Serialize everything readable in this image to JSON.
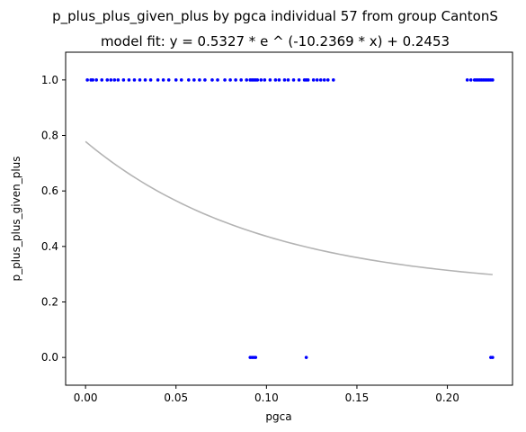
{
  "chart_data": {
    "type": "scatter",
    "title": "p_plus_plus_given_plus by pgca individual 57 from group CantonS",
    "subtitle": "model fit: y = 0.5327 * e ^ (-10.2369 * x) + 0.2453",
    "xlabel": "pgca",
    "ylabel": "p_plus_plus_given_plus",
    "xlim": [
      -0.011,
      0.236
    ],
    "ylim": [
      -0.1,
      1.1
    ],
    "xticks": [
      "0.00",
      "0.05",
      "0.10",
      "0.15",
      "0.20"
    ],
    "yticks": [
      "0.0",
      "0.2",
      "0.4",
      "0.6",
      "0.8",
      "1.0"
    ],
    "grid": false,
    "colors": {
      "points": "#0000ff",
      "fit": "#b3b3b3"
    },
    "series": [
      {
        "type": "scatter",
        "points": [
          [
            0.001,
            1
          ],
          [
            0.003,
            1
          ],
          [
            0.004,
            1
          ],
          [
            0.006,
            1
          ],
          [
            0.009,
            1
          ],
          [
            0.012,
            1
          ],
          [
            0.014,
            1
          ],
          [
            0.016,
            1
          ],
          [
            0.018,
            1
          ],
          [
            0.021,
            1
          ],
          [
            0.024,
            1
          ],
          [
            0.027,
            1
          ],
          [
            0.03,
            1
          ],
          [
            0.033,
            1
          ],
          [
            0.036,
            1
          ],
          [
            0.04,
            1
          ],
          [
            0.043,
            1
          ],
          [
            0.046,
            1
          ],
          [
            0.05,
            1
          ],
          [
            0.053,
            1
          ],
          [
            0.057,
            1
          ],
          [
            0.06,
            1
          ],
          [
            0.063,
            1
          ],
          [
            0.066,
            1
          ],
          [
            0.07,
            1
          ],
          [
            0.073,
            1
          ],
          [
            0.077,
            1
          ],
          [
            0.08,
            1
          ],
          [
            0.083,
            1
          ],
          [
            0.086,
            1
          ],
          [
            0.089,
            1
          ],
          [
            0.091,
            1
          ],
          [
            0.092,
            1
          ],
          [
            0.093,
            1
          ],
          [
            0.094,
            1
          ],
          [
            0.095,
            1
          ],
          [
            0.097,
            1
          ],
          [
            0.099,
            1
          ],
          [
            0.102,
            1
          ],
          [
            0.105,
            1
          ],
          [
            0.107,
            1
          ],
          [
            0.11,
            1
          ],
          [
            0.112,
            1
          ],
          [
            0.115,
            1
          ],
          [
            0.118,
            1
          ],
          [
            0.121,
            1
          ],
          [
            0.122,
            1
          ],
          [
            0.123,
            1
          ],
          [
            0.126,
            1
          ],
          [
            0.128,
            1
          ],
          [
            0.13,
            1
          ],
          [
            0.132,
            1
          ],
          [
            0.134,
            1
          ],
          [
            0.137,
            1
          ],
          [
            0.211,
            1
          ],
          [
            0.213,
            1
          ],
          [
            0.215,
            1
          ],
          [
            0.216,
            1
          ],
          [
            0.217,
            1
          ],
          [
            0.218,
            1
          ],
          [
            0.219,
            1
          ],
          [
            0.22,
            1
          ],
          [
            0.221,
            1
          ],
          [
            0.222,
            1
          ],
          [
            0.223,
            1
          ],
          [
            0.224,
            1
          ],
          [
            0.225,
            1
          ],
          [
            0.091,
            0
          ],
          [
            0.092,
            0
          ],
          [
            0.093,
            0
          ],
          [
            0.094,
            0
          ],
          [
            0.122,
            0
          ],
          [
            0.224,
            0
          ],
          [
            0.225,
            0
          ]
        ]
      },
      {
        "type": "line",
        "model": {
          "a": 0.5327,
          "b": -10.2369,
          "c": 0.2453
        },
        "x_range": [
          0.0,
          0.225
        ]
      }
    ]
  }
}
